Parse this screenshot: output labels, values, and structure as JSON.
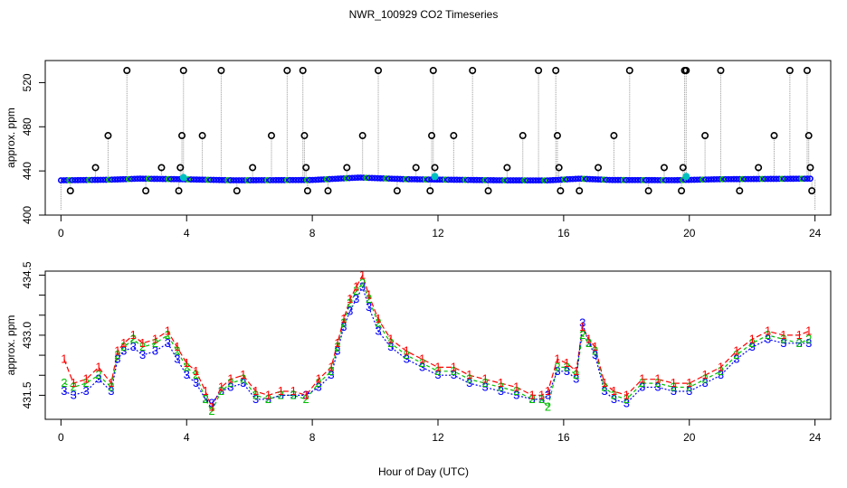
{
  "title": "NWR_100929  CO2 Timeseries",
  "xlabel": "Hour of Day (UTC)",
  "chart_data": [
    {
      "type": "scatter",
      "ylabel": "approx. ppm",
      "xlim": [
        -0.5,
        24.5
      ],
      "ylim": [
        400,
        540
      ],
      "xticks": [
        0,
        4,
        8,
        12,
        16,
        20,
        24
      ],
      "yticks": [
        400,
        440,
        480,
        520
      ],
      "series": [
        {
          "color": "#0000ff",
          "marker": "dot",
          "baseline": [
            [
              0,
              431.5
            ],
            [
              1.5,
              432.0
            ],
            [
              2.5,
              433.0
            ],
            [
              3.8,
              432.5
            ],
            [
              5.5,
              431.5
            ],
            [
              8.0,
              431.8
            ],
            [
              9.5,
              434.0
            ],
            [
              11.0,
              432.5
            ],
            [
              14.0,
              431.5
            ],
            [
              15.5,
              431.4
            ],
            [
              16.5,
              433.0
            ],
            [
              17.5,
              431.8
            ],
            [
              19.5,
              431.6
            ],
            [
              21.0,
              432.5
            ],
            [
              23.8,
              433.0
            ]
          ]
        },
        {
          "color": "#000000",
          "marker": "open-circle",
          "points": [
            [
              0.3,
              422
            ],
            [
              1.1,
              443
            ],
            [
              1.5,
              472
            ],
            [
              2.1,
              531
            ],
            [
              2.7,
              422
            ],
            [
              3.2,
              443
            ],
            [
              3.75,
              422
            ],
            [
              3.8,
              443
            ],
            [
              3.85,
              472
            ],
            [
              3.9,
              531
            ],
            [
              4.5,
              472
            ],
            [
              5.1,
              531
            ],
            [
              5.6,
              422
            ],
            [
              6.1,
              443
            ],
            [
              6.7,
              472
            ],
            [
              7.2,
              531
            ],
            [
              7.7,
              531
            ],
            [
              7.75,
              472
            ],
            [
              7.8,
              443
            ],
            [
              7.85,
              422
            ],
            [
              8.5,
              422
            ],
            [
              9.1,
              443
            ],
            [
              9.6,
              472
            ],
            [
              10.1,
              531
            ],
            [
              10.7,
              422
            ],
            [
              11.3,
              443
            ],
            [
              11.75,
              422
            ],
            [
              11.8,
              472
            ],
            [
              11.85,
              531
            ],
            [
              11.9,
              443
            ],
            [
              12.5,
              472
            ],
            [
              13.1,
              531
            ],
            [
              13.6,
              422
            ],
            [
              14.2,
              443
            ],
            [
              14.7,
              472
            ],
            [
              15.2,
              531
            ],
            [
              15.75,
              531
            ],
            [
              15.8,
              472
            ],
            [
              15.85,
              443
            ],
            [
              15.9,
              422
            ],
            [
              16.5,
              422
            ],
            [
              17.1,
              443
            ],
            [
              17.6,
              472
            ],
            [
              18.1,
              531
            ],
            [
              18.7,
              422
            ],
            [
              19.2,
              443
            ],
            [
              19.75,
              422
            ],
            [
              19.8,
              443
            ],
            [
              19.85,
              531
            ],
            [
              19.9,
              531
            ],
            [
              20.5,
              472
            ],
            [
              21.0,
              531
            ],
            [
              21.6,
              422
            ],
            [
              22.2,
              443
            ],
            [
              22.7,
              472
            ],
            [
              23.2,
              531
            ],
            [
              23.75,
              531
            ],
            [
              23.8,
              472
            ],
            [
              23.85,
              443
            ],
            [
              23.9,
              422
            ]
          ]
        },
        {
          "color": "#00bfbf",
          "marker": "filled-circle",
          "points": [
            [
              3.9,
              434
            ],
            [
              11.9,
              435
            ],
            [
              19.9,
              435
            ]
          ]
        }
      ]
    },
    {
      "type": "line",
      "ylabel": "approx. ppm",
      "xlim": [
        -0.5,
        24.5
      ],
      "ylim": [
        430.9,
        434.6
      ],
      "xticks": [
        0,
        4,
        8,
        12,
        16,
        20,
        24
      ],
      "yticks": [
        431.5,
        432,
        432.5,
        433,
        433.5,
        434,
        434.5
      ],
      "ytick_labels": [
        "431.5",
        "",
        "",
        "433.0",
        "",
        "",
        "434.5"
      ],
      "series": [
        {
          "name": "1",
          "color": "#ff0000",
          "x": [
            0.1,
            0.4,
            0.8,
            1.2,
            1.6,
            1.8,
            2.0,
            2.3,
            2.6,
            3.0,
            3.4,
            3.7,
            4.0,
            4.3,
            4.6,
            4.8,
            5.1,
            5.4,
            5.8,
            6.2,
            6.6,
            7.0,
            7.4,
            7.8,
            8.2,
            8.6,
            8.8,
            9.0,
            9.2,
            9.4,
            9.6,
            9.8,
            10.1,
            10.5,
            11.0,
            11.5,
            12.0,
            12.5,
            13.0,
            13.5,
            14.0,
            14.5,
            15.0,
            15.3,
            15.5,
            15.8,
            16.1,
            16.4,
            16.6,
            16.8,
            17.0,
            17.3,
            17.6,
            18.0,
            18.5,
            19.0,
            19.5,
            20.0,
            20.5,
            21.0,
            21.5,
            22.0,
            22.5,
            23.0,
            23.5,
            23.8
          ],
          "y": [
            432.4,
            431.8,
            431.9,
            432.2,
            431.8,
            432.6,
            432.8,
            433.0,
            432.8,
            432.9,
            433.1,
            432.7,
            432.3,
            432.1,
            431.6,
            431.2,
            431.7,
            431.9,
            432.0,
            431.6,
            431.5,
            431.6,
            431.6,
            431.5,
            431.9,
            432.2,
            432.8,
            433.4,
            433.9,
            434.2,
            434.5,
            434.0,
            433.4,
            432.9,
            432.6,
            432.4,
            432.2,
            432.2,
            432.0,
            431.9,
            431.8,
            431.7,
            431.5,
            431.5,
            431.6,
            432.4,
            432.3,
            432.1,
            433.2,
            432.9,
            432.7,
            431.8,
            431.6,
            431.5,
            431.9,
            431.9,
            431.8,
            431.8,
            432.0,
            432.2,
            432.6,
            432.9,
            433.1,
            433.0,
            433.0,
            433.1
          ]
        },
        {
          "name": "2",
          "color": "#00bf00",
          "x": [
            0.1,
            0.4,
            0.8,
            1.2,
            1.6,
            1.8,
            2.0,
            2.3,
            2.6,
            3.0,
            3.4,
            3.7,
            4.0,
            4.3,
            4.6,
            4.8,
            5.1,
            5.4,
            5.8,
            6.2,
            6.6,
            7.0,
            7.4,
            7.8,
            8.2,
            8.6,
            8.8,
            9.0,
            9.2,
            9.4,
            9.6,
            9.8,
            10.1,
            10.5,
            11.0,
            11.5,
            12.0,
            12.5,
            13.0,
            13.5,
            14.0,
            14.5,
            15.0,
            15.3,
            15.5,
            15.8,
            16.1,
            16.4,
            16.6,
            16.8,
            17.0,
            17.3,
            17.6,
            18.0,
            18.5,
            19.0,
            19.5,
            20.0,
            20.5,
            21.0,
            21.5,
            22.0,
            22.5,
            23.0,
            23.5,
            23.8
          ],
          "y": [
            431.8,
            431.7,
            431.8,
            432.0,
            431.7,
            432.5,
            432.7,
            432.9,
            432.7,
            432.8,
            433.0,
            432.6,
            432.2,
            432.0,
            431.4,
            431.1,
            431.6,
            431.8,
            431.9,
            431.5,
            431.4,
            431.5,
            431.5,
            431.4,
            431.8,
            432.1,
            432.7,
            433.3,
            433.8,
            434.1,
            434.3,
            433.9,
            433.3,
            432.8,
            432.5,
            432.3,
            432.1,
            432.1,
            431.9,
            431.8,
            431.7,
            431.6,
            431.4,
            431.4,
            431.2,
            432.2,
            432.2,
            432.0,
            433.0,
            432.8,
            432.6,
            431.7,
            431.5,
            431.4,
            431.8,
            431.8,
            431.7,
            431.7,
            431.9,
            432.1,
            432.5,
            432.8,
            433.0,
            432.9,
            432.8,
            432.9
          ]
        },
        {
          "name": "3",
          "color": "#0000ff",
          "x": [
            0.1,
            0.4,
            0.8,
            1.2,
            1.6,
            1.8,
            2.0,
            2.3,
            2.6,
            3.0,
            3.4,
            3.7,
            4.0,
            4.3,
            4.6,
            4.8,
            5.1,
            5.4,
            5.8,
            6.2,
            6.6,
            7.0,
            7.4,
            7.8,
            8.2,
            8.6,
            8.8,
            9.0,
            9.2,
            9.4,
            9.6,
            9.8,
            10.1,
            10.5,
            11.0,
            11.5,
            12.0,
            12.5,
            13.0,
            13.5,
            14.0,
            14.5,
            15.0,
            15.3,
            15.5,
            15.8,
            16.1,
            16.4,
            16.6,
            16.8,
            17.0,
            17.3,
            17.6,
            18.0,
            18.5,
            19.0,
            19.5,
            20.0,
            20.5,
            21.0,
            21.5,
            22.0,
            22.5,
            23.0,
            23.5,
            23.8
          ],
          "y": [
            431.6,
            431.5,
            431.6,
            431.9,
            431.6,
            432.4,
            432.6,
            432.7,
            432.5,
            432.6,
            432.8,
            432.4,
            432.0,
            431.8,
            431.4,
            431.3,
            431.6,
            431.7,
            431.8,
            431.4,
            431.4,
            431.5,
            431.5,
            431.5,
            431.7,
            432.0,
            432.6,
            433.2,
            433.6,
            433.9,
            434.2,
            433.7,
            433.1,
            432.7,
            432.4,
            432.2,
            432.0,
            432.0,
            431.8,
            431.7,
            431.6,
            431.5,
            431.4,
            431.4,
            431.5,
            432.1,
            432.1,
            431.9,
            433.3,
            432.8,
            432.5,
            431.6,
            431.4,
            431.3,
            431.7,
            431.7,
            431.6,
            431.6,
            431.8,
            432.0,
            432.4,
            432.7,
            432.9,
            432.8,
            432.8,
            432.8
          ]
        }
      ]
    }
  ]
}
